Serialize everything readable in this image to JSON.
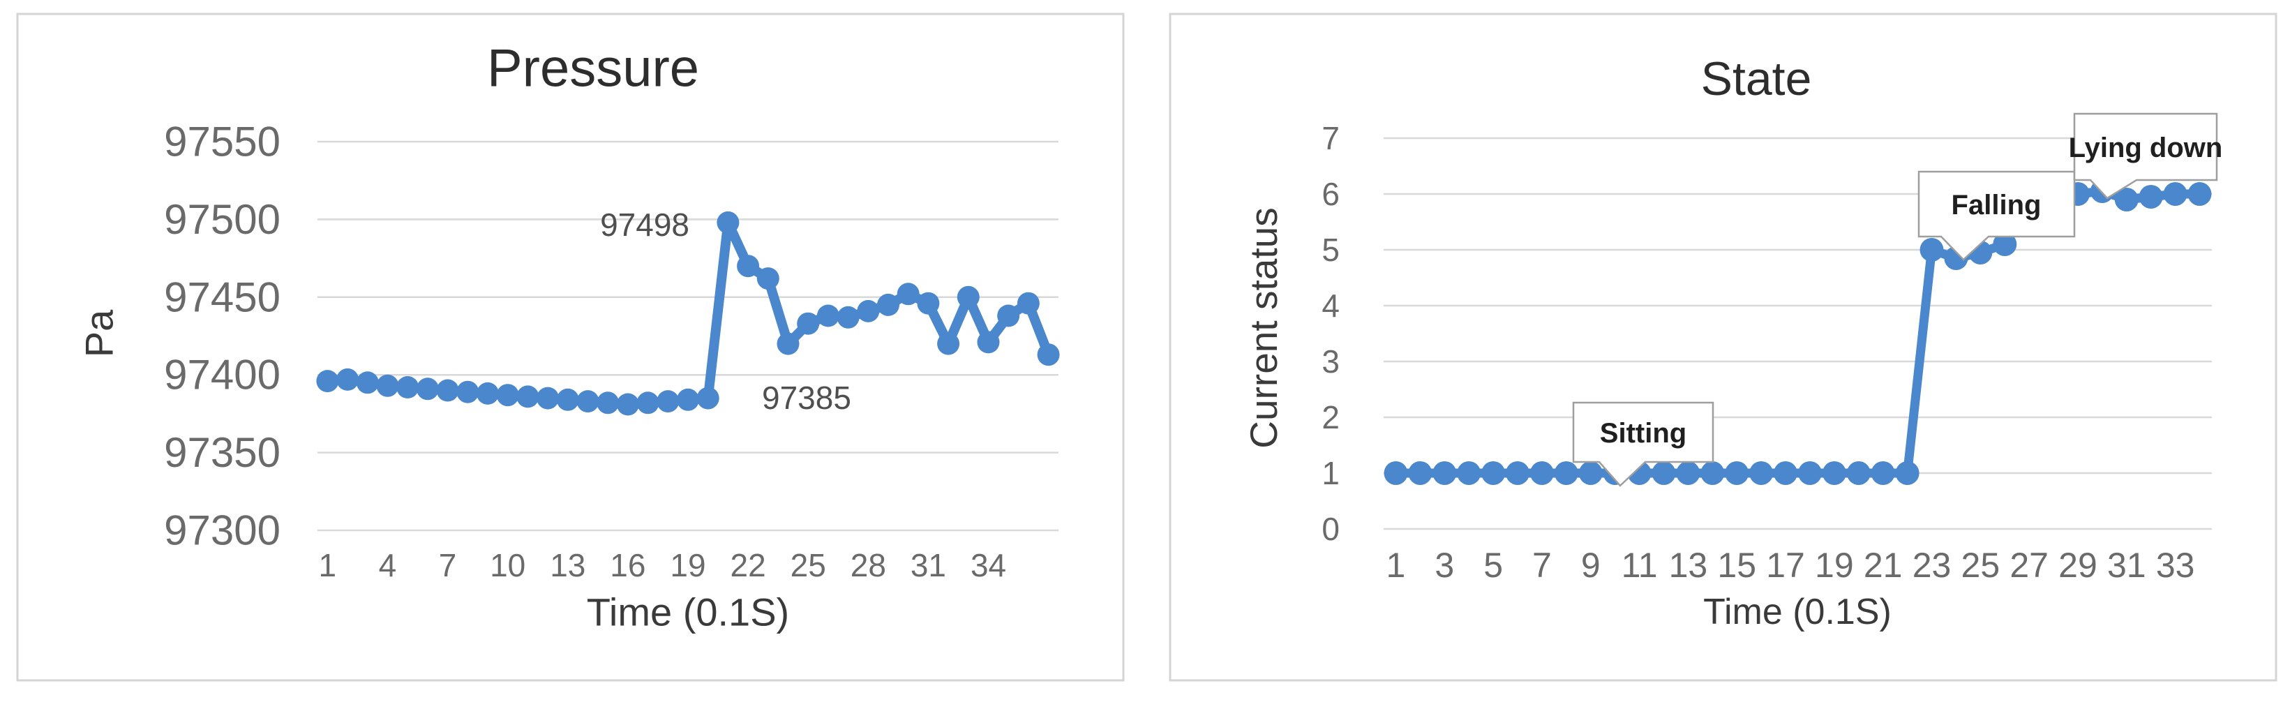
{
  "colors": {
    "line": "#4a87cc",
    "grid": "#d8d8d8",
    "tick_text": "#6a6a6a",
    "title_text": "#2d2d2d",
    "axis_title_text": "#3a3a3a",
    "annotation_text": "#4f4f4f",
    "panel_border": "#d4d4d4",
    "callout_border": "#9e9e9e",
    "callout_text": "#1f1f1f",
    "background": "#ffffff"
  },
  "chart_data": [
    {
      "type": "line",
      "title": "Pressure",
      "ylabel": "Pa",
      "xlabel": "Time (0.1S)",
      "ylim": [
        97300,
        97550
      ],
      "y_ticks": [
        97550,
        97500,
        97450,
        97400,
        97350,
        97300
      ],
      "x_ticks": [
        1,
        4,
        7,
        10,
        13,
        16,
        19,
        22,
        25,
        28,
        31,
        34
      ],
      "grid": true,
      "legend": false,
      "values": [
        97396,
        97397,
        97395,
        97393,
        97392,
        97391,
        97390,
        97389,
        97388,
        97387,
        97386,
        97385,
        97384,
        97383,
        97382,
        97381,
        97382,
        97383,
        97384,
        97385,
        97498,
        97470,
        97462,
        97420,
        97433,
        97438,
        97437,
        97441,
        97445,
        97452,
        97446,
        97420,
        97450,
        97421,
        97438,
        97446,
        97413
      ],
      "annotations": [
        {
          "text": "97498",
          "point": 21
        },
        {
          "text": "97385",
          "point": 20
        }
      ]
    },
    {
      "type": "line",
      "title": "State",
      "ylabel": "Current status",
      "xlabel": "Time (0.1S)",
      "ylim": [
        0,
        7
      ],
      "y_ticks": [
        7,
        6,
        5,
        4,
        3,
        2,
        1,
        0
      ],
      "x_ticks": [
        1,
        3,
        5,
        7,
        9,
        11,
        13,
        15,
        17,
        19,
        21,
        23,
        25,
        27,
        29,
        31,
        33
      ],
      "grid": true,
      "legend": false,
      "values": [
        1,
        1,
        1,
        1,
        1,
        1,
        1,
        1,
        1,
        1,
        1,
        1,
        1,
        1,
        1,
        1,
        1,
        1,
        1,
        1,
        1,
        1,
        5,
        4.85,
        4.95,
        5.1,
        6,
        5.95,
        6,
        6.05,
        5.9,
        5.95,
        6,
        6
      ],
      "callouts": [
        {
          "text": "Sitting",
          "point": 10
        },
        {
          "text": "Falling",
          "point": 24
        },
        {
          "text": "Lying down",
          "point": 30
        }
      ]
    }
  ]
}
